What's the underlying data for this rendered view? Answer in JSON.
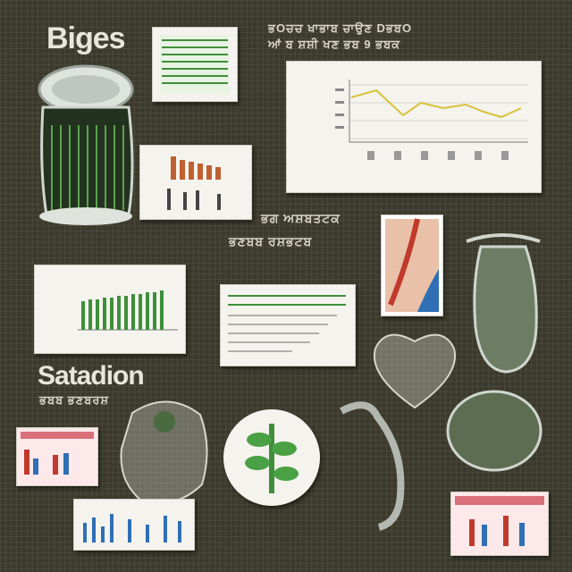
{
  "headings": {
    "top_left": "Biges",
    "middle_left": "Satadion"
  },
  "captions": {
    "top_right_1": "ਭOਚਚ ਖਾਭਾਬ ਚਾਉਣ DਭਬO",
    "top_right_2": "ਆਂ ਬ ਸ਼ਸ਼ੀ ਖਣ ਭਬ 9 ਭਬਕ",
    "center_1": "ਭਗ ਅਸ਼ਬਤਟਕ",
    "center_2": "ਭਣਬਬ ਰਸ਼ਭਟਬ",
    "middle_left_sub": "ਭਬਬ ਭਣਬਰਸ਼"
  },
  "colors": {
    "background": "#3b3a2c",
    "accent_green": "#3f8f3a",
    "accent_yellow": "#d9c23a",
    "accent_red": "#c0392b",
    "accent_blue": "#2f6fb5"
  },
  "icons": [
    "jar-icon",
    "vase-icon",
    "leaf-icon",
    "seahorse-icon",
    "shell-icon",
    "heart-icon",
    "stone-icon"
  ]
}
